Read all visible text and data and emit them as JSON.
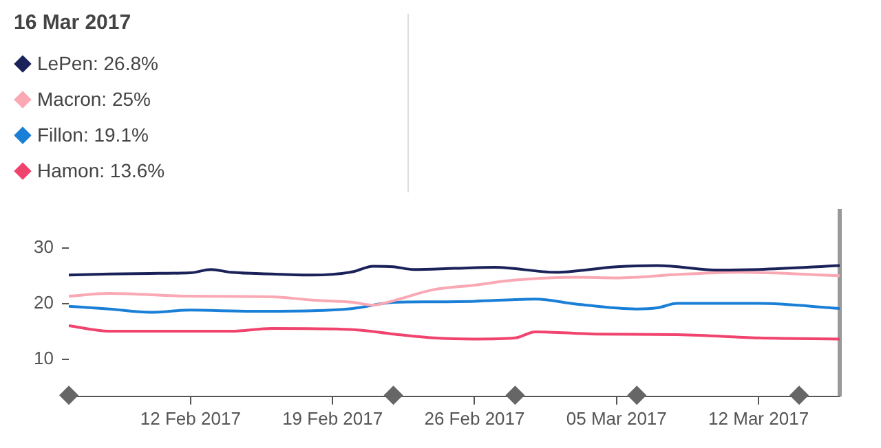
{
  "chart_data": {
    "type": "line",
    "legend_title": "16 Mar 2017",
    "legend": "top left",
    "grid": false,
    "marker": "none",
    "line_style": "solid",
    "xlim": [
      "2017-02-06",
      "2017-03-16"
    ],
    "ylim": [
      3.3,
      37
    ],
    "xticks": [
      {
        "value": "2017-02-12",
        "label": "12 Feb 2017"
      },
      {
        "value": "2017-02-19",
        "label": "19 Feb 2017"
      },
      {
        "value": "2017-02-26",
        "label": "26 Feb 2017"
      },
      {
        "value": "2017-03-05",
        "label": "05 Mar 2017"
      },
      {
        "value": "2017-03-12",
        "label": "12 Mar 2017"
      }
    ],
    "yticks": [
      10,
      20,
      30
    ],
    "ref_lines": [
      {
        "axis": "x",
        "value": "2017-03-16",
        "color": "#999999"
      }
    ],
    "series": [
      {
        "name": "LePen: 26.8%",
        "color": "#1a2259",
        "x": [
          "2017-02-06",
          "2017-02-08",
          "2017-02-10",
          "2017-02-12",
          "2017-02-13",
          "2017-02-14",
          "2017-02-16",
          "2017-02-18",
          "2017-02-20",
          "2017-02-21",
          "2017-02-22",
          "2017-02-23",
          "2017-02-25",
          "2017-02-27",
          "2017-03-02",
          "2017-03-05",
          "2017-03-07",
          "2017-03-10",
          "2017-03-12",
          "2017-03-16"
        ],
        "values": [
          25.1,
          25.3,
          25.4,
          25.5,
          26.1,
          25.6,
          25.3,
          25.1,
          25.7,
          26.7,
          26.6,
          26.1,
          26.3,
          26.5,
          25.6,
          26.6,
          26.8,
          26.0,
          26.1,
          26.8
        ]
      },
      {
        "name": "Macron: 25%",
        "color": "#f9a8b4",
        "x": [
          "2017-02-06",
          "2017-02-08",
          "2017-02-12",
          "2017-02-16",
          "2017-02-18",
          "2017-02-20",
          "2017-02-21",
          "2017-02-22",
          "2017-02-24",
          "2017-02-26",
          "2017-02-28",
          "2017-03-03",
          "2017-03-05",
          "2017-03-08",
          "2017-03-11",
          "2017-03-16"
        ],
        "values": [
          21.3,
          21.8,
          21.3,
          21.2,
          20.6,
          20.2,
          19.7,
          20.5,
          22.5,
          23.3,
          24.2,
          24.7,
          24.6,
          25.2,
          25.6,
          25.0
        ]
      },
      {
        "name": "Fillon: 19.1%",
        "color": "#1a7fd6",
        "x": [
          "2017-02-06",
          "2017-02-08",
          "2017-02-10",
          "2017-02-12",
          "2017-02-15",
          "2017-02-18",
          "2017-02-20",
          "2017-02-22",
          "2017-02-24",
          "2017-02-26",
          "2017-02-28",
          "2017-03-01",
          "2017-03-03",
          "2017-03-06",
          "2017-03-07",
          "2017-03-08",
          "2017-03-12",
          "2017-03-16"
        ],
        "values": [
          19.5,
          19.0,
          18.4,
          18.8,
          18.6,
          18.7,
          19.1,
          20.2,
          20.3,
          20.4,
          20.7,
          20.8,
          19.9,
          19.0,
          19.2,
          20.0,
          20.0,
          19.1
        ]
      },
      {
        "name": "Hamon: 13.6%",
        "color": "#f0446e",
        "x": [
          "2017-02-06",
          "2017-02-08",
          "2017-02-12",
          "2017-02-14",
          "2017-02-16",
          "2017-02-20",
          "2017-02-22",
          "2017-02-24",
          "2017-02-26",
          "2017-02-28",
          "2017-03-01",
          "2017-03-04",
          "2017-03-08",
          "2017-03-12",
          "2017-03-16"
        ],
        "values": [
          16.0,
          15.0,
          15.0,
          15.0,
          15.5,
          15.3,
          14.5,
          13.8,
          13.6,
          13.8,
          14.9,
          14.5,
          14.4,
          13.8,
          13.6
        ]
      },
      {
        "type": "scatter",
        "marker": "diamond",
        "color": "#666666",
        "x": [
          "2017-02-06",
          "2017-02-22",
          "2017-02-28",
          "2017-03-06",
          "2017-03-14"
        ],
        "values": [
          3.5,
          3.5,
          3.5,
          3.5,
          3.5
        ]
      }
    ]
  }
}
